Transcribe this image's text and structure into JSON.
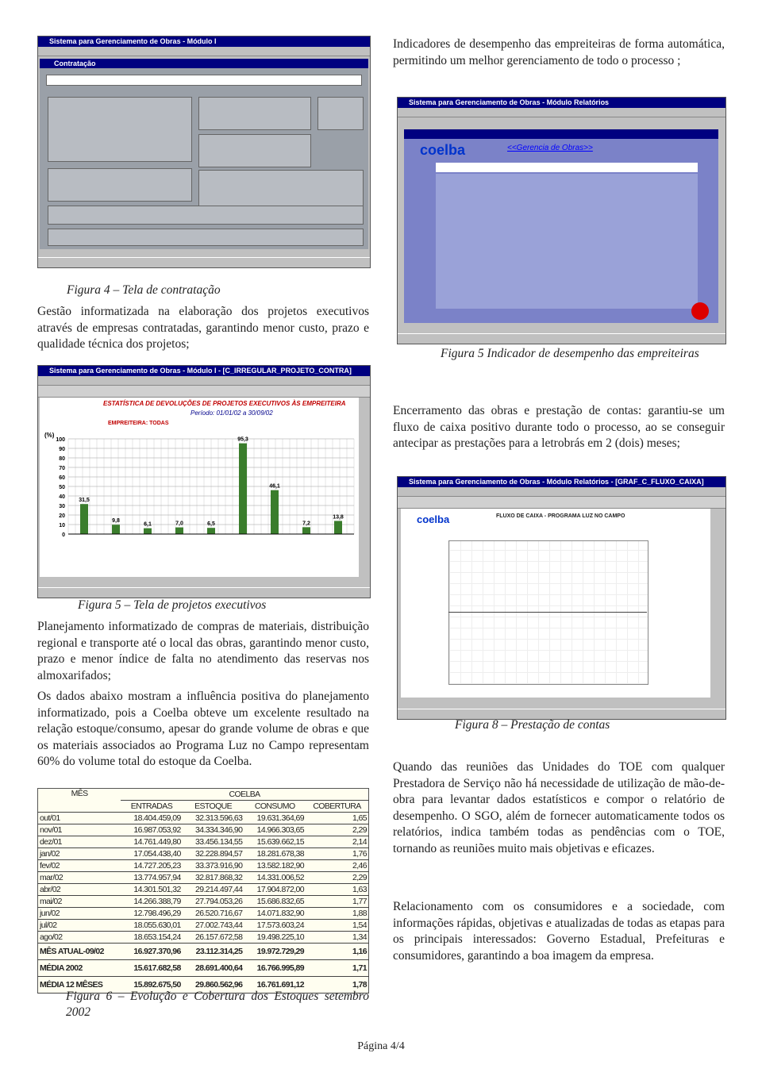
{
  "left": {
    "figure4": {
      "window_title": "Sistema para Gerenciamento de Obras - Módulo I",
      "section": "Contratação",
      "caption": "Figura 4 – Tela de contratação"
    },
    "paragraph1": "Gestão informatizada na elaboração dos projetos executivos através de empresas contratadas, garantindo menor custo, prazo e qualidade técnica dos projetos;",
    "figure5": {
      "window_title": "Sistema para Gerenciamento de Obras - Módulo I - [C_IRREGULAR_PROJETO_CONTRA]",
      "chart_title": "ESTATÍSTICA DE DEVOLUÇÕES DE PROJETOS EXECUTIVOS ÀS EMPREITEIRA",
      "period": "Período: 01/01/02 a 30/09/02",
      "subtitle": "EMPREITEIRA: TODAS",
      "unit": "(%)",
      "ylim": [
        0,
        100
      ],
      "yticks": [
        0,
        10,
        20,
        30,
        40,
        50,
        60,
        70,
        80,
        90,
        100
      ],
      "values": [
        31.5,
        9.8,
        6.1,
        7.0,
        6.5,
        95.3,
        46.1,
        7.2,
        13.8
      ],
      "value_labels": [
        "31,5",
        "9,8",
        "6,1",
        "7,0",
        "6,5",
        "95,3",
        "46,1",
        "7,2",
        "13,8"
      ],
      "caption": "Figura 5 – Tela de projetos executivos"
    },
    "paragraph2": "Planejamento informatizado de compras de materiais, distribuição regional e transporte até o local das obras, garantindo menor custo, prazo e menor índice de falta no atendimento das reservas nos almoxarifados;",
    "paragraph3": "Os dados abaixo mostram a influência positiva do planejamento informatizado, pois a Coelba obteve um excelente resultado na relação estoque/consumo, apesar do grande volume de obras e que os materiais associados ao Programa Luz no Campo representam 60% do volume total do estoque da Coelba.",
    "table": {
      "month_header": "MÊS",
      "group_header": "COELBA",
      "columns": [
        "ENTRADAS",
        "ESTOQUE",
        "CONSUMO",
        "COBERTURA"
      ],
      "rows": [
        [
          "out/01",
          "18.404.459,09",
          "32.313.596,63",
          "19.631.364,69",
          "1,65"
        ],
        [
          "nov/01",
          "16.987.053,92",
          "34.334.346,90",
          "14.966.303,65",
          "2,29"
        ],
        [
          "dez/01",
          "14.761.449,80",
          "33.456.134,55",
          "15.639.662,15",
          "2,14"
        ],
        [
          "jan/02",
          "17.054.438,40",
          "32.228.894,57",
          "18.281.678,38",
          "1,76"
        ],
        [
          "fev/02",
          "14.727.205,23",
          "33.373.916,90",
          "13.582.182,90",
          "2,46"
        ],
        [
          "mar/02",
          "13.774.957,94",
          "32.817.868,32",
          "14.331.006,52",
          "2,29"
        ],
        [
          "abr/02",
          "14.301.501,32",
          "29.214.497,44",
          "17.904.872,00",
          "1,63"
        ],
        [
          "mai/02",
          "14.266.388,79",
          "27.794.053,26",
          "15.686.832,65",
          "1,77"
        ],
        [
          "jun/02",
          "12.798.496,29",
          "26.520.716,67",
          "14.071.832,90",
          "1,88"
        ],
        [
          "jul/02",
          "18.055.630,01",
          "27.002.743,44",
          "17.573.603,24",
          "1,54"
        ],
        [
          "ago/02",
          "18.653.154,24",
          "26.157.672,58",
          "19.498.225,10",
          "1,34"
        ],
        [
          "MÊS ATUAL-09/02",
          "16.927.370,96",
          "23.112.314,25",
          "19.972.729,29",
          "1,16"
        ],
        [
          "MÉDIA 2002",
          "15.617.682,58",
          "28.691.400,64",
          "16.766.995,89",
          "1,71"
        ],
        [
          "MÉDIA 12 MÊSES",
          "15.892.675,50",
          "29.860.562,96",
          "16.761.691,12",
          "1,78"
        ]
      ]
    },
    "table_caption": "Figura 6 – Evolução e Cobertura dos Estoques setembro 2002"
  },
  "right": {
    "paragraph1": "Indicadores de desempenho das empreiteiras de forma automática, permitindo um melhor gerenciamento de todo o processo ;",
    "figure5": {
      "window_title": "Sistema para Gerenciamento de Obras - Módulo Relatórios",
      "link": "<<Gerencia de Obras>>",
      "caption": "Figura 5 Indicador de desempenho das empreiteiras"
    },
    "paragraph2": "Encerramento das obras e prestação de contas: garantiu-se um fluxo de caixa positivo durante todo o processo, ao se conseguir antecipar as prestações para a letrobrás em 2 (dois) meses;",
    "figure8": {
      "window_title": "Sistema para Gerenciamento de Obras - Módulo Relatórios - [GRAF_C_FLUXO_CAIXA]",
      "chart_title": "FLUXO DE CAIXA - PROGRAMA LUZ NO CAMPO",
      "caption": "Figura 8 – Prestação de contas"
    },
    "paragraph3": "Quando das reuniões das Unidades do TOE com qualquer Prestadora de Serviço não há necessidade de utilização de mão-de-obra para levantar dados estatísticos e compor o relatório de desempenho. O SGO, além de fornecer automaticamente todos os relatórios, indica também todas as pendências com o TOE, tornando as reuniões muito mais objetivas e eficazes.",
    "paragraph4": "Relacionamento com os consumidores e a sociedade, com informações rápidas, objetivas e atualizadas de todas as etapas para os principais interessados: Governo Estadual, Prefeituras e consumidores, garantindo a boa imagem da empresa."
  },
  "footer": "Página 4/4"
}
